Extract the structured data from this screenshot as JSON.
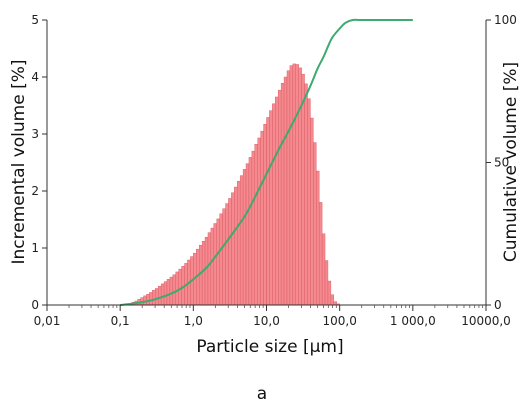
{
  "chart_data": {
    "type": "bar",
    "x_scale": "log",
    "xlim": [
      0.01,
      10000
    ],
    "ylim_left": [
      0,
      5
    ],
    "ylim_right": [
      0,
      100
    ],
    "xlabel": "Particle size [µm]",
    "ylabel_left": "Incremental volume [%]",
    "ylabel_right": "Cumulative volume [%]",
    "caption": "a",
    "grid": false,
    "x_ticks": [
      {
        "value": 0.01,
        "label": "0,01"
      },
      {
        "value": 0.1,
        "label": "0,1"
      },
      {
        "value": 1,
        "label": "1,0"
      },
      {
        "value": 10,
        "label": "10,0"
      },
      {
        "value": 100,
        "label": "100,0"
      },
      {
        "value": 1000,
        "label": "1 000,0"
      },
      {
        "value": 10000,
        "label": "10000,0"
      }
    ],
    "y_ticks_left": [
      {
        "value": 0,
        "label": "0"
      },
      {
        "value": 1,
        "label": "1"
      },
      {
        "value": 2,
        "label": "2"
      },
      {
        "value": 3,
        "label": "3"
      },
      {
        "value": 4,
        "label": "4"
      },
      {
        "value": 5,
        "label": "5"
      }
    ],
    "y_ticks_right": [
      {
        "value": 0,
        "label": "0"
      },
      {
        "value": 50,
        "label": "50"
      },
      {
        "value": 100,
        "label": "100"
      }
    ],
    "bar_color": "#f4898f",
    "bar_edge_color": "#d9545c",
    "curve_color": "#3daa6e",
    "incremental": {
      "log10_bin_start": -0.92,
      "log10_bin_width": 0.04,
      "values": [
        0.01,
        0.03,
        0.05,
        0.07,
        0.1,
        0.13,
        0.16,
        0.19,
        0.22,
        0.26,
        0.29,
        0.33,
        0.37,
        0.41,
        0.45,
        0.49,
        0.53,
        0.58,
        0.63,
        0.68,
        0.73,
        0.79,
        0.85,
        0.91,
        0.98,
        1.05,
        1.12,
        1.19,
        1.27,
        1.35,
        1.43,
        1.51,
        1.6,
        1.69,
        1.78,
        1.87,
        1.97,
        2.07,
        2.17,
        2.27,
        2.38,
        2.48,
        2.59,
        2.7,
        2.82,
        2.93,
        3.05,
        3.17,
        3.29,
        3.41,
        3.53,
        3.65,
        3.77,
        3.89,
        4.0,
        4.11,
        4.2,
        4.23,
        4.22,
        4.16,
        4.05,
        3.88,
        3.62,
        3.28,
        2.85,
        2.35,
        1.8,
        1.25,
        0.78,
        0.42,
        0.18,
        0.06,
        0.02
      ]
    },
    "cumulative": {
      "x": [
        0.1,
        0.15,
        0.2,
        0.3,
        0.5,
        0.7,
        1,
        1.5,
        2,
        3,
        5,
        7,
        10,
        15,
        20,
        30,
        40,
        50,
        60,
        70,
        80,
        100,
        120,
        150,
        200,
        500,
        1000
      ],
      "y": [
        0,
        0.5,
        1,
        2,
        4,
        6,
        9,
        13,
        17,
        23,
        31,
        38,
        46,
        55,
        61,
        70,
        77,
        83,
        87,
        91,
        94,
        97,
        99,
        100,
        100,
        100,
        100
      ]
    }
  }
}
